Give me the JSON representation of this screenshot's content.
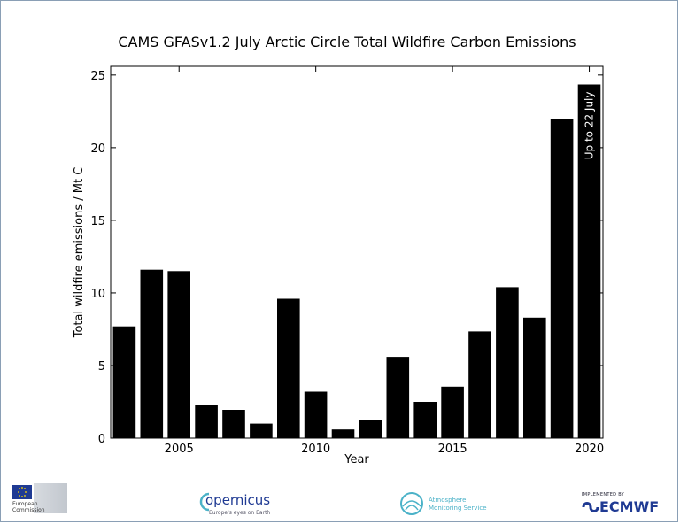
{
  "chart_data": {
    "type": "bar",
    "title": "CAMS GFASv1.2 July Arctic Circle Total Wildfire Carbon Emissions",
    "xlabel": "Year",
    "ylabel": "Total wildfire emissions / Mt C",
    "x": [
      2003,
      2004,
      2005,
      2006,
      2007,
      2008,
      2009,
      2010,
      2011,
      2012,
      2013,
      2014,
      2015,
      2016,
      2017,
      2018,
      2019,
      2020
    ],
    "values": [
      7.7,
      11.6,
      11.5,
      2.3,
      1.95,
      1.0,
      9.6,
      3.2,
      0.6,
      1.25,
      5.6,
      2.5,
      3.55,
      7.35,
      10.4,
      8.3,
      21.95,
      24.35
    ],
    "xlim": [
      2002.5,
      2020.5
    ],
    "ylim": [
      0,
      25.6
    ],
    "xticks": [
      "2005",
      "2010",
      "2015",
      "2020"
    ],
    "yticks": [
      "0",
      "5",
      "10",
      "15",
      "20",
      "25"
    ],
    "grid": false,
    "bar_color": "#000000",
    "annotations": [
      {
        "x": 2020,
        "text": "Up to 22 July"
      }
    ]
  },
  "footer": {
    "eu_text": "European Commission",
    "copernicus_name": "opernicus",
    "copernicus_tagline": "Europe's eyes on Earth",
    "ams_line1": "Atmosphere",
    "ams_line2": "Monitoring Service",
    "ecmwf_implemented": "IMPLEMENTED BY",
    "ecmwf_name": "ECMWF"
  }
}
